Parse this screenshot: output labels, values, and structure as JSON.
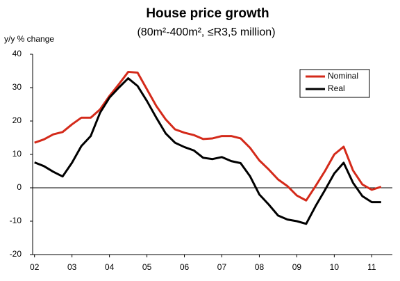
{
  "chart_data": {
    "type": "line",
    "title": "House price growth",
    "subtitle": "(80m²-400m², ≤R3,5 million)",
    "y_label": "y/y % change",
    "x": [
      2002,
      2002.25,
      2002.5,
      2002.75,
      2003,
      2003.25,
      2003.5,
      2003.75,
      2004,
      2004.25,
      2004.5,
      2004.75,
      2005,
      2005.25,
      2005.5,
      2005.75,
      2006,
      2006.25,
      2006.5,
      2006.75,
      2007,
      2007.25,
      2007.5,
      2007.75,
      2008,
      2008.25,
      2008.5,
      2008.75,
      2009,
      2009.25,
      2009.5,
      2009.75,
      2010,
      2010.25,
      2010.5,
      2010.75,
      2011,
      2011.25
    ],
    "series": [
      {
        "name": "Nominal",
        "color": "#d42a1a",
        "values": [
          13.5,
          14.5,
          16,
          16.7,
          19,
          21,
          21,
          23.5,
          27.5,
          31,
          34.7,
          34.5,
          29.5,
          24.5,
          20.5,
          17.5,
          16.5,
          15.8,
          14.6,
          14.8,
          15.5,
          15.5,
          14.8,
          12,
          8.2,
          5.5,
          2.5,
          0.5,
          -2.3,
          -3.8,
          0.5,
          5,
          10,
          12.3,
          5.2,
          1,
          -0.6,
          0.3
        ]
      },
      {
        "name": "Real",
        "color": "#000000",
        "values": [
          7.6,
          6.5,
          4.8,
          3.4,
          7.5,
          12.5,
          15.5,
          22.5,
          27,
          30,
          32.8,
          30.5,
          26,
          21,
          16.3,
          13.5,
          12.2,
          11.2,
          9,
          8.6,
          9.2,
          8,
          7.4,
          3.5,
          -2,
          -5,
          -8.3,
          -9.5,
          -10,
          -10.8,
          -5.5,
          -0.7,
          4.3,
          7.5,
          1.5,
          -2.5,
          -4.3,
          -4.3
        ]
      }
    ],
    "xlim": [
      2001.95,
      2011.55
    ],
    "xticks": [
      {
        "value": 2002,
        "label": "02"
      },
      {
        "value": 2003,
        "label": "03"
      },
      {
        "value": 2004,
        "label": "04"
      },
      {
        "value": 2005,
        "label": "05"
      },
      {
        "value": 2006,
        "label": "06"
      },
      {
        "value": 2007,
        "label": "07"
      },
      {
        "value": 2008,
        "label": "08"
      },
      {
        "value": 2009,
        "label": "09"
      },
      {
        "value": 2010,
        "label": "10"
      },
      {
        "value": 2011,
        "label": "11"
      }
    ],
    "ylim": [
      -20,
      40
    ],
    "yticks": [
      -20,
      -10,
      0,
      10,
      20,
      30,
      40
    ],
    "legend": "upper right"
  }
}
